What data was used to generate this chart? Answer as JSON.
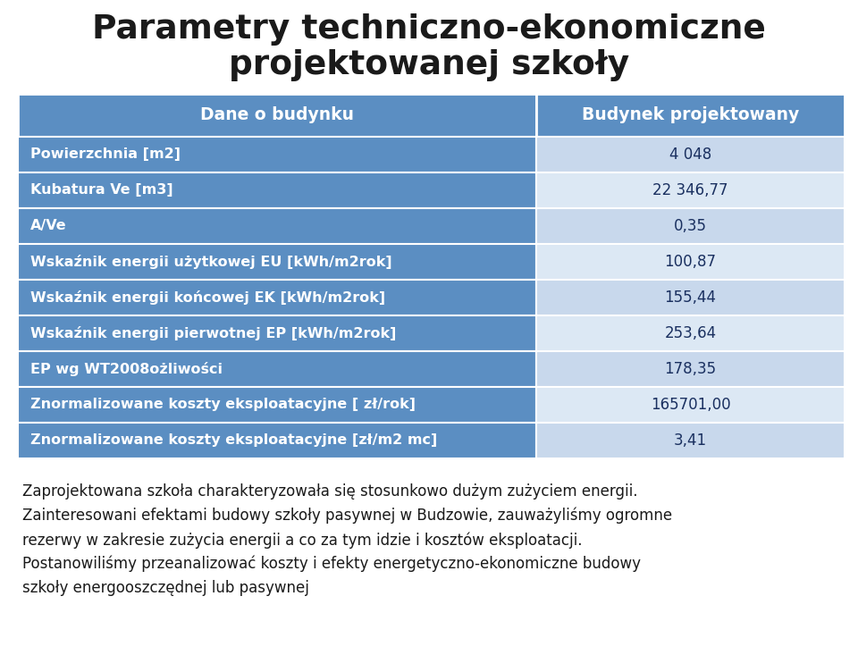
{
  "title_line1": "Parametry techniczno-ekonomiczne",
  "title_line2": "projektowanej szkoły",
  "header_col1": "Dane o budynku",
  "header_col2": "Budynek projektowany",
  "rows": [
    [
      "Powierzchnia [m2]",
      "4 048"
    ],
    [
      "Kubatura Ve [m3]",
      "22 346,77"
    ],
    [
      "A/Ve",
      "0,35"
    ],
    [
      "Wskaźnik energii użytkowej EU [kWh/m2rok]",
      "100,87"
    ],
    [
      "Wskaźnik energii końcowej EK [kWh/m2rok]",
      "155,44"
    ],
    [
      "Wskaźnik energii pierwotnej EP [kWh/m2rok]",
      "253,64"
    ],
    [
      "EP wg WT2008ożliwości",
      "178,35"
    ],
    [
      "Znormalizowane koszty eksploatacyjne [ zł/rok]",
      "165701,00"
    ],
    [
      "Znormalizowane koszty eksploatacyjne [zł/m2 mc]",
      "3,41"
    ]
  ],
  "footer_lines": [
    "Zaprojektowana szkoła charakteryzowała się stosunkowo dużym zużyciem energii.",
    "Zainteresowani efektami budowy szkoły pasywnej w Budzowie, zauważyliśmy ogromne",
    "rezerwy w zakresie zużycia energii a co za tym idzie i kosztów eksploatacji.",
    "Postanowiliśmy przeanalizować koszty i efekty energetyczno-ekonomiczne budowy",
    "szkoły energooszczędnej lub pasywnej"
  ],
  "color_header_bg": "#5b8ec2",
  "color_header_text": "#ffffff",
  "color_left_bg": "#5b8ec2",
  "color_left_text": "#ffffff",
  "color_right_odd_bg": "#c8d8ec",
  "color_right_even_bg": "#dce8f4",
  "color_right_text": "#1a3060",
  "bg_color": "#ffffff",
  "title_color": "#1a1a1a",
  "footer_color": "#1a1a1a",
  "divider_color": "#ffffff"
}
